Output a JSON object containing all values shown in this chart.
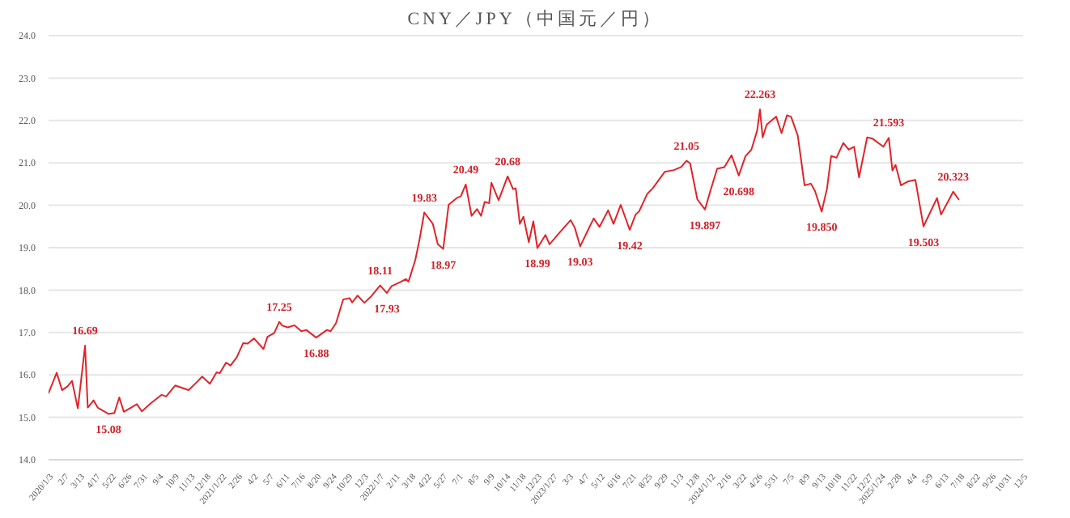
{
  "chart_data": {
    "type": "line",
    "title": "CNY／JPY（中国元／円）",
    "x": [
      "2020-01-03",
      "2020-01-21",
      "2020-02-02",
      "2020-02-14",
      "2020-02-24",
      "2020-03-08",
      "2020-03-24",
      "2020-03-30",
      "2020-04-12",
      "2020-04-21",
      "2020-05-15",
      "2020-05-28",
      "2020-06-08",
      "2020-06-18",
      "2020-07-17",
      "2020-07-28",
      "2020-08-18",
      "2020-09-10",
      "2020-09-20",
      "2020-10-10",
      "2020-11-09",
      "2020-11-27",
      "2020-12-09",
      "2020-12-26",
      "2021-01-10",
      "2021-01-17",
      "2021-01-31",
      "2021-02-10",
      "2021-02-24",
      "2021-03-10",
      "2021-03-20",
      "2021-04-03",
      "2021-04-24",
      "2021-05-03",
      "2021-05-18",
      "2021-05-29",
      "2021-06-05",
      "2021-06-17",
      "2021-07-02",
      "2021-07-17",
      "2021-07-28",
      "2021-08-19",
      "2021-09-12",
      "2021-09-20",
      "2021-10-02",
      "2021-10-18",
      "2021-11-01",
      "2021-11-07",
      "2021-11-19",
      "2021-12-04",
      "2021-12-18",
      "2022-01-08",
      "2022-01-23",
      "2022-02-02",
      "2022-02-22",
      "2022-03-06",
      "2022-03-12",
      "2022-03-27",
      "2022-04-05",
      "2022-04-16",
      "2022-05-05",
      "2022-05-16",
      "2022-05-28",
      "2022-06-09",
      "2022-06-27",
      "2022-07-06",
      "2022-07-17",
      "2022-07-30",
      "2022-08-11",
      "2022-08-20",
      "2022-08-28",
      "2022-09-07",
      "2022-09-12",
      "2022-09-28",
      "2022-10-18",
      "2022-10-30",
      "2022-11-05",
      "2022-11-14",
      "2022-11-22",
      "2022-12-04",
      "2022-12-14",
      "2022-12-23",
      "2023-01-10",
      "2023-01-19",
      "2023-02-09",
      "2023-03-07",
      "2023-03-16",
      "2023-03-28",
      "2023-04-15",
      "2023-04-27",
      "2023-05-10",
      "2023-05-29",
      "2023-06-10",
      "2023-06-26",
      "2023-07-16",
      "2023-07-29",
      "2023-08-06",
      "2023-08-24",
      "2023-09-05",
      "2023-10-02",
      "2023-10-22",
      "2023-11-07",
      "2023-11-19",
      "2023-11-27",
      "2023-12-13",
      "2023-12-30",
      "2024-01-11",
      "2024-01-26",
      "2024-02-11",
      "2024-02-27",
      "2024-03-14",
      "2024-03-29",
      "2024-04-11",
      "2024-04-24",
      "2024-04-30",
      "2024-05-06",
      "2024-05-15",
      "2024-06-05",
      "2024-06-17",
      "2024-06-29",
      "2024-07-08",
      "2024-07-23",
      "2024-08-07",
      "2024-08-21",
      "2024-08-30",
      "2024-09-14",
      "2024-09-26",
      "2024-10-05",
      "2024-10-17",
      "2024-11-01",
      "2024-11-13",
      "2024-11-25",
      "2024-12-06",
      "2024-12-24",
      "2025-01-05",
      "2025-01-29",
      "2025-02-10",
      "2025-02-18",
      "2025-02-25",
      "2025-03-09",
      "2025-03-24",
      "2025-04-10",
      "2025-04-28",
      "2025-05-28",
      "2025-06-06",
      "2025-06-21",
      "2025-07-03",
      "2025-07-15"
    ],
    "series": [
      {
        "color": "#e0242a",
        "values": [
          15.57,
          16.05,
          15.64,
          15.73,
          15.86,
          15.21,
          16.69,
          15.23,
          15.4,
          15.23,
          15.08,
          15.1,
          15.47,
          15.13,
          15.31,
          15.14,
          15.34,
          15.53,
          15.49,
          15.75,
          15.64,
          15.83,
          15.96,
          15.79,
          16.06,
          16.04,
          16.29,
          16.22,
          16.42,
          16.75,
          16.74,
          16.86,
          16.61,
          16.9,
          16.99,
          17.25,
          17.16,
          17.12,
          17.17,
          17.03,
          17.06,
          16.88,
          17.06,
          17.03,
          17.22,
          17.78,
          17.81,
          17.71,
          17.87,
          17.7,
          17.84,
          18.11,
          17.93,
          18.09,
          18.19,
          18.26,
          18.2,
          18.71,
          19.17,
          19.83,
          19.56,
          19.08,
          18.97,
          20.01,
          20.17,
          20.21,
          20.49,
          19.75,
          19.91,
          19.75,
          20.08,
          20.05,
          20.53,
          20.12,
          20.68,
          20.38,
          20.4,
          19.56,
          19.73,
          19.13,
          19.62,
          18.99,
          19.3,
          19.08,
          19.34,
          19.65,
          19.47,
          19.03,
          19.43,
          19.69,
          19.49,
          19.88,
          19.56,
          20.01,
          19.42,
          19.78,
          19.86,
          20.27,
          20.4,
          20.79,
          20.83,
          20.9,
          21.05,
          20.99,
          20.14,
          19.9,
          20.34,
          20.86,
          20.9,
          21.18,
          20.7,
          21.16,
          21.31,
          21.77,
          22.26,
          21.6,
          21.9,
          22.09,
          21.7,
          22.12,
          22.09,
          21.64,
          20.47,
          20.51,
          20.34,
          19.85,
          20.4,
          21.16,
          21.12,
          21.47,
          21.31,
          21.38,
          20.66,
          21.6,
          21.57,
          21.38,
          21.59,
          20.82,
          20.95,
          20.47,
          20.56,
          20.6,
          19.5,
          20.17,
          19.78,
          20.08,
          20.32,
          20.14
        ]
      }
    ],
    "xlim": [
      "2020-01-03",
      "2025-12-05"
    ],
    "xticks": [
      {
        "value": "2020-01-03",
        "label": "2020/1/3"
      },
      {
        "value": "2020-02-07",
        "label": "2/7"
      },
      {
        "value": "2020-03-13",
        "label": "3/13"
      },
      {
        "value": "2020-04-17",
        "label": "4/17"
      },
      {
        "value": "2020-05-22",
        "label": "5/22"
      },
      {
        "value": "2020-06-26",
        "label": "6/26"
      },
      {
        "value": "2020-07-31",
        "label": "7/31"
      },
      {
        "value": "2020-09-04",
        "label": "9/4"
      },
      {
        "value": "2020-10-09",
        "label": "10/9"
      },
      {
        "value": "2020-11-13",
        "label": "11/13"
      },
      {
        "value": "2020-12-18",
        "label": "12/18"
      },
      {
        "value": "2021-01-22",
        "label": "2021/1/22"
      },
      {
        "value": "2021-02-26",
        "label": "2/26"
      },
      {
        "value": "2021-04-02",
        "label": "4/2"
      },
      {
        "value": "2021-05-07",
        "label": "5/7"
      },
      {
        "value": "2021-06-11",
        "label": "6/11"
      },
      {
        "value": "2021-07-16",
        "label": "7/16"
      },
      {
        "value": "2021-08-20",
        "label": "8/20"
      },
      {
        "value": "2021-09-24",
        "label": "9/24"
      },
      {
        "value": "2021-10-29",
        "label": "10/29"
      },
      {
        "value": "2021-12-03",
        "label": "12/3"
      },
      {
        "value": "2022-01-07",
        "label": "2022/1/7"
      },
      {
        "value": "2022-02-11",
        "label": "2/11"
      },
      {
        "value": "2022-03-18",
        "label": "3/18"
      },
      {
        "value": "2022-04-22",
        "label": "4/22"
      },
      {
        "value": "2022-05-27",
        "label": "5/27"
      },
      {
        "value": "2022-07-01",
        "label": "7/1"
      },
      {
        "value": "2022-08-05",
        "label": "8/5"
      },
      {
        "value": "2022-09-09",
        "label": "9/9"
      },
      {
        "value": "2022-10-14",
        "label": "10/14"
      },
      {
        "value": "2022-11-18",
        "label": "11/18"
      },
      {
        "value": "2022-12-23",
        "label": "12/23"
      },
      {
        "value": "2023-01-27",
        "label": "2023/1/27"
      },
      {
        "value": "2023-03-03",
        "label": "3/3"
      },
      {
        "value": "2023-04-07",
        "label": "4/7"
      },
      {
        "value": "2023-05-12",
        "label": "5/12"
      },
      {
        "value": "2023-06-16",
        "label": "6/16"
      },
      {
        "value": "2023-07-21",
        "label": "7/21"
      },
      {
        "value": "2023-08-25",
        "label": "8/25"
      },
      {
        "value": "2023-09-29",
        "label": "9/29"
      },
      {
        "value": "2023-11-03",
        "label": "11/3"
      },
      {
        "value": "2023-12-08",
        "label": "12/8"
      },
      {
        "value": "2024-01-12",
        "label": "2024/1/12"
      },
      {
        "value": "2024-02-16",
        "label": "2/16"
      },
      {
        "value": "2024-03-22",
        "label": "3/22"
      },
      {
        "value": "2024-04-26",
        "label": "4/26"
      },
      {
        "value": "2024-05-31",
        "label": "5/31"
      },
      {
        "value": "2024-07-05",
        "label": "7/5"
      },
      {
        "value": "2024-08-09",
        "label": "8/9"
      },
      {
        "value": "2024-09-13",
        "label": "9/13"
      },
      {
        "value": "2024-10-18",
        "label": "10/18"
      },
      {
        "value": "2024-11-22",
        "label": "11/22"
      },
      {
        "value": "2024-12-27",
        "label": "12/27"
      },
      {
        "value": "2025-01-24",
        "label": "2025/1/24"
      },
      {
        "value": "2025-02-28",
        "label": "2/28"
      },
      {
        "value": "2025-04-04",
        "label": "4/4"
      },
      {
        "value": "2025-05-09",
        "label": "5/9"
      },
      {
        "value": "2025-06-13",
        "label": "6/13"
      },
      {
        "value": "2025-07-18",
        "label": "7/18"
      },
      {
        "value": "2025-08-22",
        "label": "8/22"
      },
      {
        "value": "2025-09-26",
        "label": "9/26"
      },
      {
        "value": "2025-10-31",
        "label": "10/31"
      },
      {
        "value": "2025-12-05",
        "label": "12/5"
      }
    ],
    "ylim": [
      14,
      24
    ],
    "yticks": [
      {
        "value": 14,
        "label": "14.0"
      },
      {
        "value": 15,
        "label": "15.0"
      },
      {
        "value": 16,
        "label": "16.0"
      },
      {
        "value": 17,
        "label": "17.0"
      },
      {
        "value": 18,
        "label": "18.0"
      },
      {
        "value": 19,
        "label": "19.0"
      },
      {
        "value": 20,
        "label": "20.0"
      },
      {
        "value": 21,
        "label": "21.0"
      },
      {
        "value": 22,
        "label": "22.0"
      },
      {
        "value": 23,
        "label": "23.0"
      },
      {
        "value": 24,
        "label": "24.0"
      }
    ],
    "grid": "y",
    "line_style": "solid",
    "marker": "none",
    "annotations": [
      {
        "text": "16.69",
        "x": "2020-03-24",
        "y": 16.69
      },
      {
        "text": "15.08",
        "x": "2020-05-15",
        "y": 15.08
      },
      {
        "text": "17.25",
        "x": "2021-05-29",
        "y": 17.25
      },
      {
        "text": "16.88",
        "x": "2021-08-19",
        "y": 16.88
      },
      {
        "text": "18.11",
        "x": "2022-01-08",
        "y": 18.11
      },
      {
        "text": "17.93",
        "x": "2022-01-23",
        "y": 17.93
      },
      {
        "text": "19.83",
        "x": "2022-04-16",
        "y": 19.83
      },
      {
        "text": "18.97",
        "x": "2022-05-28",
        "y": 18.97
      },
      {
        "text": "20.49",
        "x": "2022-07-17",
        "y": 20.49
      },
      {
        "text": "20.68",
        "x": "2022-10-18",
        "y": 20.68
      },
      {
        "text": "18.99",
        "x": "2022-12-23",
        "y": 18.99
      },
      {
        "text": "19.03",
        "x": "2023-03-28",
        "y": 19.03
      },
      {
        "text": "19.42",
        "x": "2023-07-16",
        "y": 19.42
      },
      {
        "text": "21.05",
        "x": "2023-11-19",
        "y": 21.05
      },
      {
        "text": "19.897",
        "x": "2023-12-30",
        "y": 19.9
      },
      {
        "text": "20.698",
        "x": "2024-03-14",
        "y": 20.7
      },
      {
        "text": "22.263",
        "x": "2024-04-30",
        "y": 22.26
      },
      {
        "text": "19.850",
        "x": "2024-09-14",
        "y": 19.85
      },
      {
        "text": "21.593",
        "x": "2025-02-10",
        "y": 21.59
      },
      {
        "text": "19.503",
        "x": "2025-04-28",
        "y": 19.5
      },
      {
        "text": "20.323",
        "x": "2025-07-03",
        "y": 20.32
      }
    ]
  }
}
